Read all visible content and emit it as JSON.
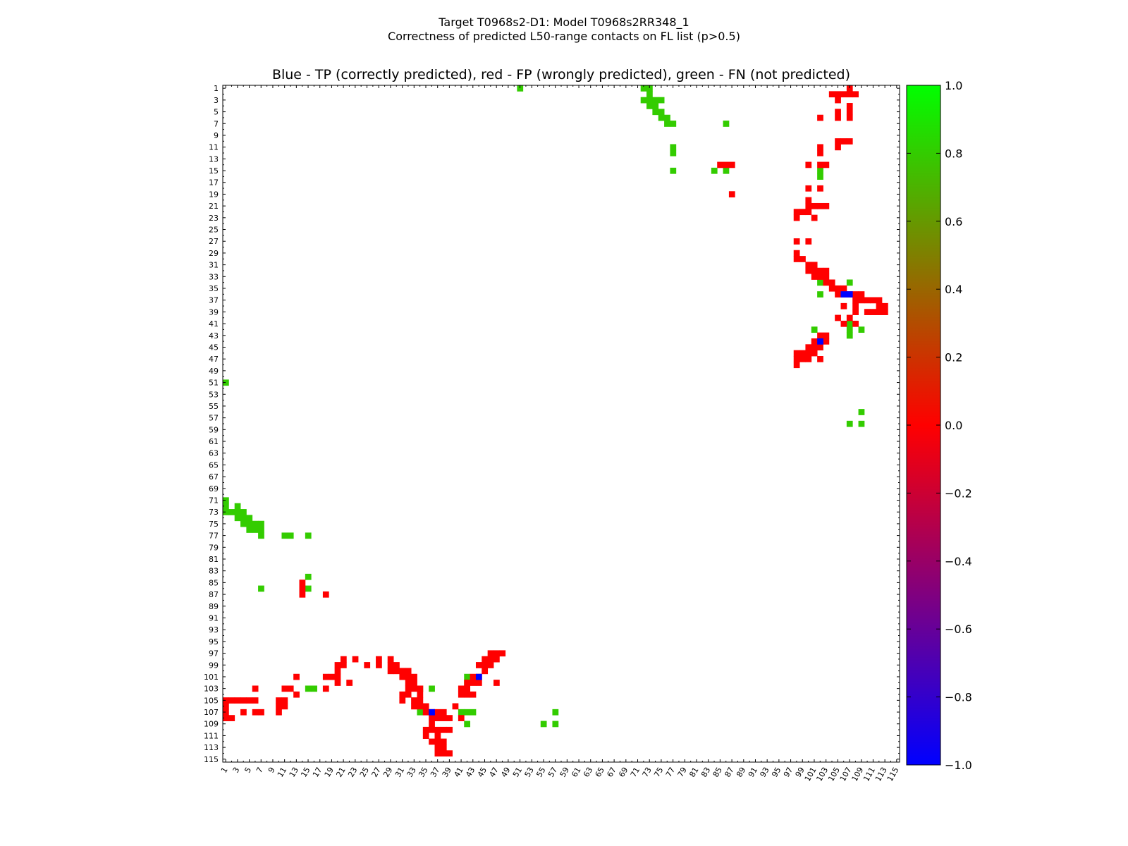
{
  "chart_data": {
    "type": "heatmap",
    "suptitle_line1": "Target T0968s2-D1: Model T0968s2RR348_1",
    "suptitle_line2": "Correctness of predicted L50-range contacts on FL list (p>0.5)",
    "title": "Blue - TP (correctly predicted), red - FP (wrongly predicted), green - FN (not predicted)",
    "xlabel": "",
    "ylabel": "",
    "x_range": [
      1,
      115
    ],
    "y_range": [
      1,
      115
    ],
    "x_tick_labels": [
      "1",
      "3",
      "5",
      "7",
      "9",
      "11",
      "13",
      "15",
      "17",
      "19",
      "21",
      "23",
      "25",
      "27",
      "29",
      "31",
      "33",
      "35",
      "37",
      "39",
      "41",
      "43",
      "45",
      "47",
      "49",
      "51",
      "53",
      "55",
      "57",
      "59",
      "61",
      "63",
      "65",
      "67",
      "69",
      "71",
      "73",
      "75",
      "77",
      "79",
      "81",
      "83",
      "85",
      "87",
      "89",
      "91",
      "93",
      "95",
      "97",
      "99",
      "101",
      "103",
      "105",
      "107",
      "109",
      "111",
      "113",
      "115"
    ],
    "y_tick_labels": [
      "1",
      "3",
      "5",
      "7",
      "9",
      "11",
      "13",
      "15",
      "17",
      "19",
      "21",
      "23",
      "25",
      "27",
      "29",
      "31",
      "33",
      "35",
      "37",
      "39",
      "41",
      "43",
      "45",
      "47",
      "49",
      "51",
      "53",
      "55",
      "57",
      "59",
      "61",
      "63",
      "65",
      "67",
      "69",
      "71",
      "73",
      "75",
      "77",
      "79",
      "81",
      "83",
      "85",
      "87",
      "89",
      "91",
      "93",
      "95",
      "97",
      "99",
      "101",
      "103",
      "105",
      "107",
      "109",
      "111",
      "113",
      "115"
    ],
    "colorbar": {
      "min": -1.0,
      "max": 1.0,
      "tick_labels": [
        "1.0",
        "0.8",
        "0.6",
        "0.4",
        "0.2",
        "0.0",
        "−0.2",
        "−0.4",
        "−0.6",
        "−0.8",
        "−1.0"
      ],
      "colors": {
        "low": "#0000ff",
        "mid": "#ff0000",
        "high": "#00ff00"
      }
    },
    "category_colors": {
      "TP": "#0000ff",
      "FP": "#ff0000",
      "FN": "#33cc00"
    },
    "cells": {
      "FN": [
        [
          1,
          51
        ],
        [
          1,
          72
        ],
        [
          1,
          73
        ],
        [
          2,
          73
        ],
        [
          3,
          72
        ],
        [
          3,
          73
        ],
        [
          3,
          74
        ],
        [
          3,
          75
        ],
        [
          4,
          73
        ],
        [
          4,
          74
        ],
        [
          5,
          74
        ],
        [
          5,
          75
        ],
        [
          6,
          75
        ],
        [
          6,
          76
        ],
        [
          7,
          76
        ],
        [
          7,
          77
        ],
        [
          7,
          86
        ],
        [
          11,
          77
        ],
        [
          12,
          77
        ],
        [
          15,
          77
        ],
        [
          15,
          84
        ],
        [
          15,
          86
        ],
        [
          15,
          102
        ],
        [
          16,
          102
        ],
        [
          34,
          102
        ],
        [
          34,
          107
        ],
        [
          36,
          102
        ],
        [
          41,
          107
        ],
        [
          42,
          101
        ],
        [
          42,
          107
        ],
        [
          42,
          109
        ],
        [
          43,
          107
        ],
        [
          51,
          1
        ],
        [
          56,
          109
        ],
        [
          58,
          107
        ],
        [
          58,
          109
        ],
        [
          71,
          1
        ],
        [
          72,
          1
        ],
        [
          72,
          3
        ],
        [
          73,
          1
        ],
        [
          73,
          2
        ],
        [
          73,
          3
        ],
        [
          73,
          4
        ],
        [
          74,
          3
        ],
        [
          74,
          4
        ],
        [
          74,
          5
        ],
        [
          75,
          4
        ],
        [
          75,
          5
        ],
        [
          75,
          6
        ],
        [
          75,
          7
        ],
        [
          76,
          5
        ],
        [
          76,
          6
        ],
        [
          76,
          7
        ],
        [
          77,
          7
        ],
        [
          77,
          11
        ],
        [
          77,
          12
        ],
        [
          77,
          15
        ],
        [
          84,
          15
        ],
        [
          86,
          7
        ],
        [
          86,
          15
        ],
        [
          101,
          42
        ],
        [
          102,
          42
        ],
        [
          103,
          34
        ],
        [
          103,
          36
        ],
        [
          103,
          15
        ],
        [
          103,
          16
        ],
        [
          107,
          34
        ],
        [
          107,
          41
        ],
        [
          107,
          42
        ],
        [
          107,
          43
        ],
        [
          107,
          57
        ],
        [
          109,
          42
        ],
        [
          109,
          55
        ],
        [
          109,
          57
        ]
      ],
      "FP": [
        [
          1,
          107
        ],
        [
          2,
          104
        ],
        [
          2,
          105
        ],
        [
          2,
          106
        ],
        [
          2,
          107
        ],
        [
          2,
          108
        ],
        [
          3,
          105
        ],
        [
          4,
          107
        ],
        [
          5,
          105
        ],
        [
          5,
          107
        ],
        [
          6,
          102
        ],
        [
          6,
          105
        ],
        [
          6,
          107
        ],
        [
          10,
          105
        ],
        [
          10,
          106
        ],
        [
          10,
          107
        ],
        [
          11,
          102
        ],
        [
          11,
          105
        ],
        [
          12,
          102
        ],
        [
          14,
          100
        ],
        [
          14,
          102
        ],
        [
          14,
          103
        ],
        [
          14,
          85
        ],
        [
          14,
          86
        ],
        [
          14,
          87
        ],
        [
          18,
          100
        ],
        [
          18,
          102
        ],
        [
          19,
          87
        ],
        [
          20,
          100
        ],
        [
          21,
          100
        ],
        [
          21,
          101
        ],
        [
          21,
          102
        ],
        [
          21,
          103
        ],
        [
          22,
          98
        ],
        [
          22,
          99
        ],
        [
          22,
          100
        ],
        [
          23,
          98
        ],
        [
          23,
          101
        ],
        [
          27,
          98
        ],
        [
          27,
          100
        ],
        [
          29,
          98
        ],
        [
          30,
          98
        ],
        [
          30,
          99
        ],
        [
          31,
          100
        ],
        [
          31,
          101
        ],
        [
          32,
          100
        ],
        [
          32,
          101
        ],
        [
          32,
          102
        ],
        [
          32,
          103
        ],
        [
          33,
          101
        ],
        [
          33,
          102
        ],
        [
          33,
          103
        ],
        [
          34,
          103
        ],
        [
          34,
          104
        ],
        [
          35,
          104
        ],
        [
          35,
          105
        ],
        [
          35,
          106
        ],
        [
          36,
          105
        ],
        [
          36,
          106
        ],
        [
          36,
          107
        ],
        [
          36,
          108
        ],
        [
          36,
          109
        ],
        [
          37,
          108
        ],
        [
          37,
          109
        ],
        [
          37,
          110
        ],
        [
          37,
          111
        ],
        [
          37,
          112
        ],
        [
          38,
          106
        ],
        [
          38,
          108
        ],
        [
          38,
          112
        ],
        [
          38,
          113
        ],
        [
          39,
          108
        ],
        [
          39,
          110
        ],
        [
          39,
          111
        ],
        [
          39,
          112
        ],
        [
          39,
          113
        ],
        [
          40,
          105
        ],
        [
          40,
          107
        ],
        [
          41,
          106
        ],
        [
          41,
          108
        ],
        [
          43,
          102
        ],
        [
          43,
          103
        ],
        [
          44,
          101
        ],
        [
          44,
          102
        ],
        [
          44,
          103
        ],
        [
          45,
          100
        ],
        [
          45,
          101
        ],
        [
          45,
          102
        ],
        [
          46,
          98
        ],
        [
          46,
          99
        ],
        [
          46,
          100
        ],
        [
          46,
          101
        ],
        [
          47,
          98
        ],
        [
          47,
          99
        ],
        [
          47,
          100
        ],
        [
          47,
          102
        ],
        [
          48,
          98
        ],
        [
          85,
          14
        ],
        [
          86,
          14
        ],
        [
          87,
          14
        ],
        [
          87,
          18
        ],
        [
          97,
          46
        ],
        [
          97,
          47
        ],
        [
          97,
          48
        ],
        [
          98,
          21
        ],
        [
          98,
          23
        ],
        [
          98,
          27
        ],
        [
          98,
          29
        ],
        [
          98,
          45
        ],
        [
          98,
          46
        ],
        [
          98,
          47
        ],
        [
          99,
          20
        ],
        [
          99,
          21
        ],
        [
          99,
          25
        ],
        [
          99,
          27
        ],
        [
          99,
          29
        ],
        [
          99,
          30
        ],
        [
          99,
          44
        ],
        [
          99,
          45
        ],
        [
          99,
          46
        ],
        [
          100,
          20
        ],
        [
          100,
          29
        ],
        [
          100,
          30
        ],
        [
          100,
          31
        ],
        [
          100,
          32
        ],
        [
          100,
          45
        ],
        [
          101,
          13
        ],
        [
          101,
          18
        ],
        [
          101,
          19
        ],
        [
          101,
          20
        ],
        [
          101,
          31
        ],
        [
          101,
          32
        ],
        [
          101,
          33
        ],
        [
          101,
          43
        ],
        [
          101,
          44
        ],
        [
          102,
          20
        ],
        [
          102,
          22
        ],
        [
          102,
          32
        ],
        [
          102,
          33
        ],
        [
          102,
          42
        ],
        [
          102,
          43
        ],
        [
          102,
          44
        ],
        [
          102,
          47
        ],
        [
          103,
          6
        ],
        [
          103,
          11
        ],
        [
          103,
          12
        ],
        [
          103,
          18
        ],
        [
          103,
          32
        ],
        [
          103,
          33
        ],
        [
          103,
          34
        ],
        [
          103,
          41
        ],
        [
          103,
          42
        ],
        [
          104,
          13
        ],
        [
          104,
          31
        ],
        [
          104,
          32
        ],
        [
          104,
          34
        ],
        [
          104,
          41
        ],
        [
          104,
          42
        ],
        [
          104,
          43
        ],
        [
          105,
          1
        ],
        [
          105,
          2
        ],
        [
          105,
          3
        ],
        [
          105,
          4
        ],
        [
          105,
          5
        ],
        [
          105,
          6
        ],
        [
          105,
          10
        ],
        [
          105,
          11
        ],
        [
          105,
          31
        ],
        [
          105,
          33
        ],
        [
          105,
          34
        ],
        [
          106,
          1
        ],
        [
          106,
          10
        ],
        [
          106,
          11
        ],
        [
          106,
          33
        ],
        [
          106,
          34
        ],
        [
          106,
          35
        ],
        [
          106,
          40
        ],
        [
          107,
          1
        ],
        [
          107,
          4
        ],
        [
          107,
          6
        ],
        [
          107,
          7
        ],
        [
          107,
          10
        ],
        [
          107,
          35
        ],
        [
          107,
          36
        ],
        [
          107,
          37
        ],
        [
          107,
          38
        ],
        [
          108,
          1
        ],
        [
          108,
          2
        ],
        [
          108,
          36
        ],
        [
          108,
          37
        ],
        [
          108,
          38
        ],
        [
          108,
          39
        ],
        [
          108,
          41
        ],
        [
          109,
          36
        ],
        [
          110,
          35
        ],
        [
          110,
          36
        ],
        [
          110,
          37
        ],
        [
          110,
          38
        ],
        [
          110,
          39
        ],
        [
          111,
          35
        ],
        [
          111,
          37
        ],
        [
          112,
          36
        ],
        [
          112,
          37
        ],
        [
          112,
          38
        ],
        [
          113,
          37
        ],
        [
          113,
          38
        ],
        [
          114,
          37
        ],
        [
          114,
          38
        ],
        [
          114,
          39
        ]
      ],
      "TP": [
        [
          36,
          106
        ],
        [
          36,
          107
        ],
        [
          44,
          102
        ],
        [
          101,
          44
        ],
        [
          107,
          36
        ]
      ]
    }
  }
}
